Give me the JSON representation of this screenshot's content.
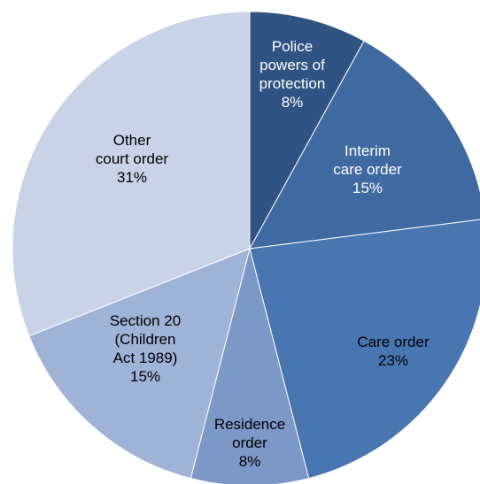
{
  "chart_data": {
    "type": "pie",
    "legend": "none",
    "slices": [
      {
        "label_lines": [
          "Police",
          "powers of",
          "protection"
        ],
        "pct_label": "8%",
        "value": 8,
        "color": "#2f5382",
        "text_color": "#ffffff"
      },
      {
        "label_lines": [
          "Interim",
          "care order"
        ],
        "pct_label": "15%",
        "value": 15,
        "color": "#3f69a1",
        "text_color": "#ffffff"
      },
      {
        "label_lines": [
          "Care order"
        ],
        "pct_label": "23%",
        "value": 23,
        "color": "#4776b0",
        "text_color": "#000000"
      },
      {
        "label_lines": [
          "Residence",
          "order"
        ],
        "pct_label": "8%",
        "value": 8,
        "color": "#7b98c7",
        "text_color": "#000000"
      },
      {
        "label_lines": [
          "Section 20",
          "(Children",
          "Act 1989)"
        ],
        "pct_label": "15%",
        "value": 15,
        "color": "#9fb3d7",
        "text_color": "#000000"
      },
      {
        "label_lines": [
          "Other",
          "court order"
        ],
        "pct_label": "31%",
        "value": 31,
        "color": "#c8d3e7",
        "text_color": "#000000"
      }
    ]
  }
}
